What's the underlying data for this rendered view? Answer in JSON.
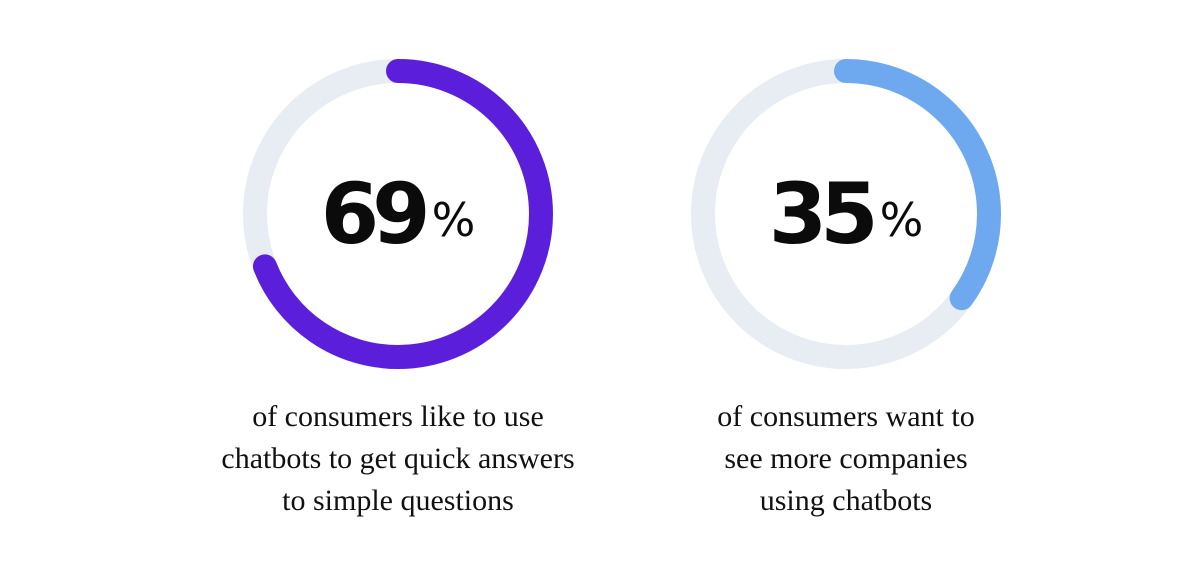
{
  "chart_data": [
    {
      "type": "pie",
      "value": 69,
      "unit": "%",
      "value_text": "69",
      "max": 100,
      "caption_lines": [
        "of consumers like to use",
        "chatbots to get quick answers",
        "to simple questions"
      ],
      "colors": {
        "fill": "#5b1fdc",
        "track": "#e8ecf3"
      }
    },
    {
      "type": "pie",
      "value": 35,
      "unit": "%",
      "value_text": "35",
      "max": 100,
      "caption_lines": [
        "of consumers want to",
        "see more companies",
        "using chatbots"
      ],
      "colors": {
        "fill": "#6ea8ee",
        "track": "#e8ecf3"
      }
    }
  ]
}
